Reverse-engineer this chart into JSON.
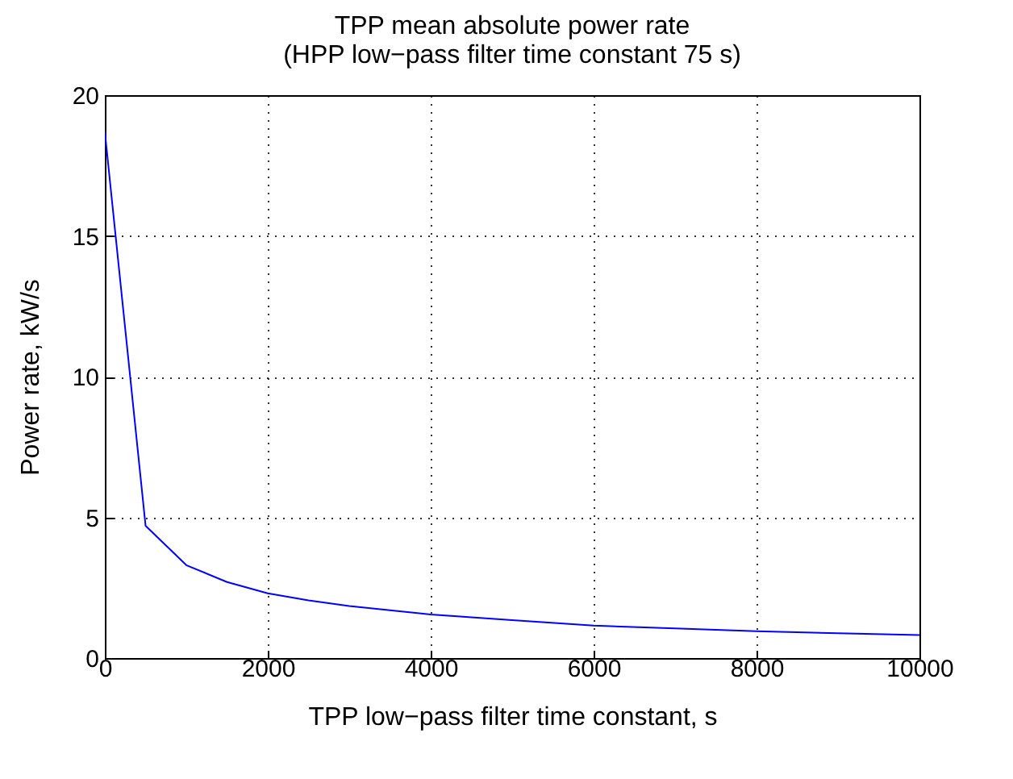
{
  "chart_data": {
    "type": "line",
    "title": "TPP mean absolute power rate",
    "subtitle": "(HPP low−pass filter time constant 75 s)",
    "xlabel": "TPP low−pass filter time constant, s",
    "ylabel": "Power rate, kW/s",
    "x": [
      0,
      500,
      1000,
      1500,
      2000,
      2500,
      3000,
      3500,
      4000,
      4500,
      5000,
      6000,
      7000,
      8000,
      9000,
      10000
    ],
    "series": [
      {
        "color": "#0000ff",
        "values": [
          18.7,
          4.7,
          3.3,
          2.7,
          2.3,
          2.05,
          1.85,
          1.7,
          1.55,
          1.45,
          1.35,
          1.15,
          1.05,
          0.95,
          0.88,
          0.82
        ]
      }
    ],
    "xlim": [
      0,
      10000
    ],
    "xticks": [
      0,
      2000,
      4000,
      6000,
      8000,
      10000
    ],
    "ylim": [
      0,
      20
    ],
    "yticks": [
      0,
      5,
      10,
      15,
      20
    ],
    "grid": true,
    "line_style": "solid",
    "marker": "none"
  }
}
